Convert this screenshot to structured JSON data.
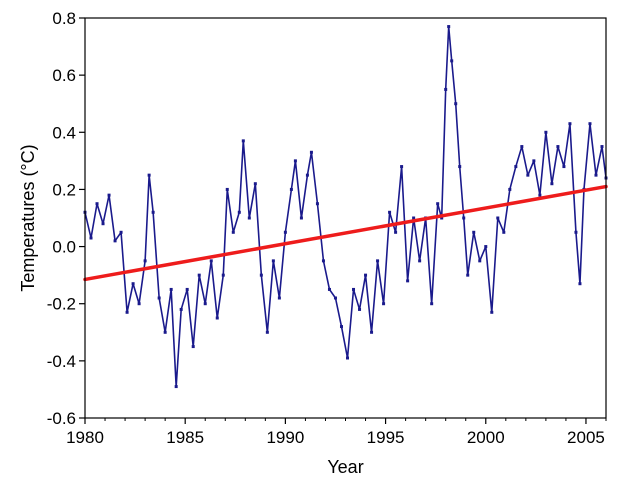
{
  "chart_data": {
    "type": "line",
    "title": "",
    "xlabel": "Year",
    "ylabel": "Temperatures (°C)",
    "xlim": [
      1980,
      2006
    ],
    "ylim": [
      -0.6,
      0.8
    ],
    "x_ticks": [
      1980,
      1985,
      1990,
      1995,
      2000,
      2005
    ],
    "x_tick_labels": [
      "1980",
      "1985",
      "1990",
      "1995",
      "2000",
      "2005"
    ],
    "y_ticks": [
      -0.6,
      -0.4,
      -0.2,
      0.0,
      0.2,
      0.4,
      0.6,
      0.8
    ],
    "y_tick_labels": [
      "-0.6",
      "-0.4",
      "-0.2",
      "0.0",
      "0.2",
      "0.4",
      "0.6",
      "0.8"
    ],
    "grid": false,
    "colors": {
      "series": "#1a1a8c",
      "trend": "#ee1c1c",
      "axis": "#000000"
    },
    "series": [
      {
        "kind": "line-markers",
        "color": "#1a1a8c",
        "x": [
          1980.0,
          1980.3,
          1980.6,
          1980.9,
          1981.2,
          1981.5,
          1981.8,
          1982.1,
          1982.4,
          1982.7,
          1983.0,
          1983.2,
          1983.4,
          1983.7,
          1984.0,
          1984.3,
          1984.55,
          1984.8,
          1985.1,
          1985.4,
          1985.7,
          1986.0,
          1986.3,
          1986.6,
          1986.9,
          1987.1,
          1987.4,
          1987.7,
          1987.9,
          1988.2,
          1988.5,
          1988.8,
          1989.1,
          1989.4,
          1989.7,
          1990.0,
          1990.3,
          1990.5,
          1990.8,
          1991.1,
          1991.3,
          1991.6,
          1991.9,
          1992.2,
          1992.5,
          1992.8,
          1993.1,
          1993.4,
          1993.7,
          1994.0,
          1994.3,
          1994.6,
          1994.9,
          1995.2,
          1995.5,
          1995.8,
          1996.1,
          1996.4,
          1996.7,
          1997.0,
          1997.3,
          1997.6,
          1997.8,
          1998.0,
          1998.15,
          1998.3,
          1998.5,
          1998.7,
          1998.9,
          1999.1,
          1999.4,
          1999.7,
          2000.0,
          2000.3,
          2000.6,
          2000.9,
          2001.2,
          2001.5,
          2001.8,
          2002.1,
          2002.4,
          2002.7,
          2003.0,
          2003.3,
          2003.6,
          2003.9,
          2004.2,
          2004.5,
          2004.7,
          2004.9,
          2005.2,
          2005.5,
          2005.8,
          2006.0
        ],
        "y": [
          0.12,
          0.03,
          0.15,
          0.08,
          0.18,
          0.02,
          0.05,
          -0.23,
          -0.13,
          -0.2,
          -0.05,
          0.25,
          0.12,
          -0.18,
          -0.3,
          -0.15,
          -0.49,
          -0.22,
          -0.15,
          -0.35,
          -0.1,
          -0.2,
          -0.05,
          -0.25,
          -0.1,
          0.2,
          0.05,
          0.12,
          0.37,
          0.1,
          0.22,
          -0.1,
          -0.3,
          -0.05,
          -0.18,
          0.05,
          0.2,
          0.3,
          0.1,
          0.25,
          0.33,
          0.15,
          -0.05,
          -0.15,
          -0.18,
          -0.28,
          -0.39,
          -0.15,
          -0.22,
          -0.1,
          -0.3,
          -0.05,
          -0.2,
          0.12,
          0.05,
          0.28,
          -0.12,
          0.1,
          -0.05,
          0.1,
          -0.2,
          0.15,
          0.1,
          0.55,
          0.77,
          0.65,
          0.5,
          0.28,
          0.1,
          -0.1,
          0.05,
          -0.05,
          0.0,
          -0.23,
          0.1,
          0.05,
          0.2,
          0.28,
          0.35,
          0.25,
          0.3,
          0.18,
          0.4,
          0.22,
          0.35,
          0.28,
          0.43,
          0.05,
          -0.13,
          0.2,
          0.43,
          0.25,
          0.35,
          0.24
        ]
      },
      {
        "kind": "trend-line",
        "color": "#ee1c1c",
        "x": [
          1980,
          2006
        ],
        "y": [
          -0.115,
          0.21
        ]
      }
    ]
  }
}
